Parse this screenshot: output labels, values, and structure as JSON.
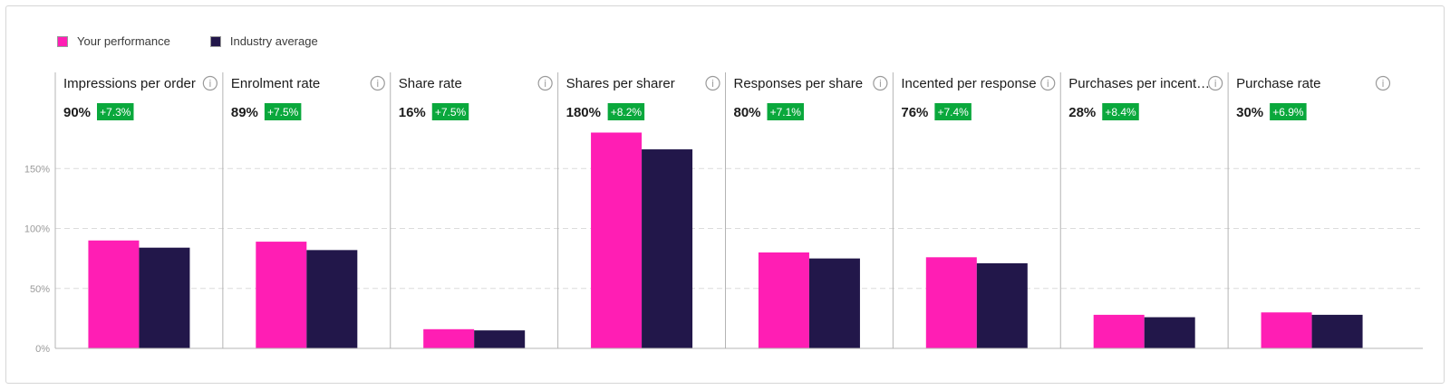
{
  "colors": {
    "your_performance": "#ff1eb4",
    "industry_average": "#22174a",
    "badge": "#0aa83c",
    "grid": "#dcdcdc",
    "axis": "#b4b4b4"
  },
  "legend": [
    {
      "label": "Your performance",
      "color": "#ff1eb4"
    },
    {
      "label": "Industry average",
      "color": "#22174a"
    }
  ],
  "chart_data": {
    "type": "bar",
    "title": "",
    "xlabel": "",
    "ylabel": "",
    "ylim": [
      0,
      200
    ],
    "yticks": [
      0,
      50,
      100,
      150
    ],
    "ytick_labels": [
      "0%",
      "50%",
      "100%",
      "150%"
    ],
    "grid": true,
    "legend_position": "top-left",
    "categories": [
      "Impressions per order",
      "Enrolment rate",
      "Share rate",
      "Shares per sharer",
      "Responses per share",
      "Incented per response",
      "Purchases per incent…",
      "Purchase rate"
    ],
    "value_labels": [
      "90%",
      "89%",
      "16%",
      "180%",
      "80%",
      "76%",
      "28%",
      "30%"
    ],
    "change_labels": [
      "+7.3%",
      "+7.5%",
      "+7.5%",
      "+8.2%",
      "+7.1%",
      "+7.4%",
      "+8.4%",
      "+6.9%"
    ],
    "series": [
      {
        "name": "Your performance",
        "values": [
          90,
          89,
          16,
          180,
          80,
          76,
          28,
          30
        ]
      },
      {
        "name": "Industry average",
        "values": [
          84,
          82,
          15,
          166,
          75,
          71,
          26,
          28
        ]
      }
    ]
  }
}
